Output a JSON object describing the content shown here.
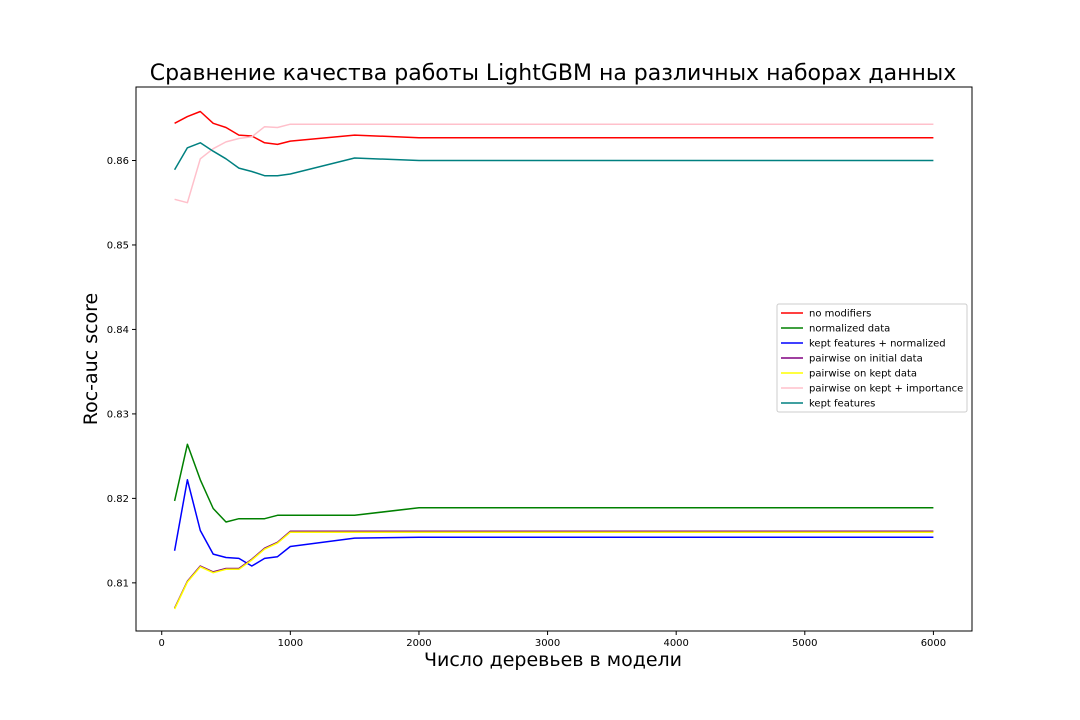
{
  "chart_data": {
    "type": "line",
    "title": "Сравнение качества работы LightGBM на различных наборах данных",
    "xlabel": "Число деревьев в модели",
    "ylabel": "Roc-auc score",
    "xlim": [
      -200,
      6300
    ],
    "ylim": [
      0.8043,
      0.8687
    ],
    "xticks": [
      0,
      1000,
      2000,
      3000,
      4000,
      5000,
      6000
    ],
    "xtick_labels": [
      "0",
      "1000",
      "2000",
      "3000",
      "4000",
      "5000",
      "6000"
    ],
    "yticks": [
      0.81,
      0.82,
      0.83,
      0.84,
      0.85,
      0.86
    ],
    "ytick_labels": [
      "0.81",
      "0.82",
      "0.83",
      "0.84",
      "0.85",
      "0.86"
    ],
    "grid": false,
    "legend_position": "center-right",
    "series": [
      {
        "name": "no modifiers",
        "color": "#ff0000",
        "x": [
          100,
          200,
          300,
          400,
          500,
          600,
          700,
          800,
          900,
          1000,
          1500,
          2000,
          6000
        ],
        "y": [
          0.8644,
          0.8652,
          0.8658,
          0.8644,
          0.8639,
          0.863,
          0.8629,
          0.8621,
          0.8619,
          0.8623,
          0.863,
          0.8627,
          0.8627
        ]
      },
      {
        "name": "normalized data",
        "color": "#008000",
        "x": [
          100,
          200,
          300,
          400,
          500,
          600,
          700,
          800,
          900,
          1000,
          1500,
          2000,
          6000
        ],
        "y": [
          0.8197,
          0.8264,
          0.8222,
          0.8188,
          0.8172,
          0.8176,
          0.8176,
          0.8176,
          0.818,
          0.818,
          0.818,
          0.8189,
          0.8189
        ]
      },
      {
        "name": "kept features + normalized",
        "color": "#0000ff",
        "x": [
          100,
          200,
          300,
          400,
          500,
          600,
          700,
          800,
          900,
          1000,
          1500,
          2000,
          6000
        ],
        "y": [
          0.8138,
          0.8222,
          0.8162,
          0.8134,
          0.813,
          0.8129,
          0.812,
          0.8129,
          0.8131,
          0.8143,
          0.8153,
          0.8154,
          0.8154
        ]
      },
      {
        "name": "pairwise on initial data",
        "color": "#800080",
        "x": [
          100,
          200,
          300,
          400,
          500,
          600,
          700,
          800,
          900,
          1000,
          1500,
          2000,
          6000
        ],
        "y": [
          0.807,
          0.8102,
          0.812,
          0.8113,
          0.8117,
          0.8117,
          0.8128,
          0.8141,
          0.8148,
          0.8161,
          0.8161,
          0.8161,
          0.8161
        ]
      },
      {
        "name": "pairwise on kept data",
        "color": "#ffff00",
        "x": [
          100,
          200,
          300,
          400,
          500,
          600,
          700,
          800,
          900,
          1000,
          1500,
          2000,
          6000
        ],
        "y": [
          0.8069,
          0.8101,
          0.8119,
          0.8112,
          0.8116,
          0.8116,
          0.8127,
          0.814,
          0.8147,
          0.816,
          0.816,
          0.816,
          0.816
        ]
      },
      {
        "name": "pairwise on kept + importance",
        "color": "#ffc0cb",
        "x": [
          100,
          200,
          300,
          400,
          500,
          600,
          700,
          800,
          900,
          1000,
          1500,
          2000,
          6000
        ],
        "y": [
          0.8554,
          0.855,
          0.8602,
          0.8614,
          0.8622,
          0.8626,
          0.8628,
          0.864,
          0.8639,
          0.8643,
          0.8643,
          0.8643,
          0.8643
        ]
      },
      {
        "name": "kept features",
        "color": "#008080",
        "x": [
          100,
          200,
          300,
          400,
          500,
          600,
          700,
          800,
          900,
          1000,
          1500,
          2000,
          6000
        ],
        "y": [
          0.8589,
          0.8615,
          0.8621,
          0.8611,
          0.8602,
          0.8591,
          0.8587,
          0.8582,
          0.8582,
          0.8584,
          0.8603,
          0.86,
          0.86
        ]
      }
    ]
  }
}
